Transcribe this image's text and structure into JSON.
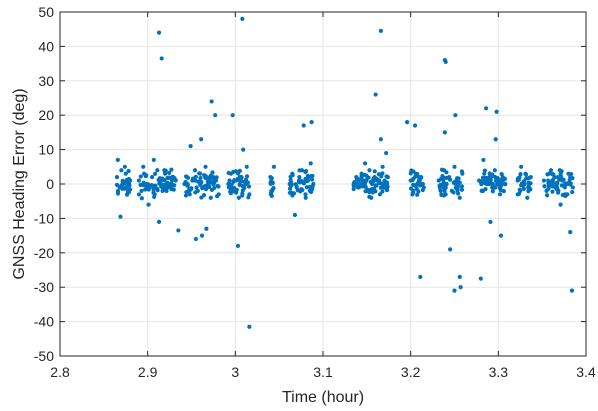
{
  "chart_data": {
    "type": "scatter",
    "title": "",
    "xlabel": "Time (hour)",
    "ylabel": "GNSS Heading Error (deg)",
    "xlim": [
      2.8,
      3.4
    ],
    "ylim": [
      -50,
      50
    ],
    "xticks": [
      2.8,
      2.9,
      3.0,
      3.1,
      3.2,
      3.3,
      3.4
    ],
    "xtick_labels": [
      "2.8",
      "2.9",
      "3",
      "3.1",
      "3.2",
      "3.3",
      "3.4"
    ],
    "yticks": [
      -50,
      -40,
      -30,
      -20,
      -10,
      0,
      10,
      20,
      30,
      40,
      50
    ],
    "ytick_labels": [
      "-50",
      "-40",
      "-30",
      "-20",
      "-10",
      "0",
      "10",
      "20",
      "30",
      "40",
      "50"
    ],
    "grid": true,
    "legend": "none",
    "marker_color": "#0072BD",
    "series": [
      {
        "x": [
          2.865,
          2.868,
          2.87,
          2.872,
          2.875,
          2.878,
          2.88,
          2.866,
          2.869,
          2.874,
          2.89,
          2.893,
          2.896,
          2.899,
          2.902,
          2.905,
          2.908,
          2.911,
          2.914,
          2.917,
          2.92,
          2.923,
          2.926,
          2.929,
          2.932,
          2.895,
          2.901,
          2.907,
          2.913,
          2.919,
          2.942,
          2.945,
          2.948,
          2.951,
          2.954,
          2.957,
          2.96,
          2.963,
          2.966,
          2.969,
          2.972,
          2.975,
          2.978,
          2.981,
          2.949,
          2.955,
          2.961,
          2.967,
          2.973,
          2.977,
          2.992,
          2.995,
          2.998,
          3.001,
          3.004,
          3.007,
          3.01,
          3.013,
          3.016,
          2.997,
          3.003,
          3.009,
          3.04,
          3.042,
          3.044,
          3.062,
          3.065,
          3.07,
          3.073,
          3.076,
          3.08,
          3.083,
          3.086,
          3.089,
          3.068,
          3.078,
          3.135,
          3.138,
          3.141,
          3.144,
          3.147,
          3.15,
          3.153,
          3.156,
          3.159,
          3.162,
          3.165,
          3.168,
          3.171,
          3.174,
          3.14,
          3.148,
          3.155,
          3.16,
          3.166,
          3.172,
          3.2,
          3.203,
          3.206,
          3.209,
          3.212,
          3.215,
          3.205,
          3.211,
          3.232,
          3.235,
          3.238,
          3.241,
          3.244,
          3.247,
          3.25,
          3.253,
          3.256,
          3.259,
          3.239,
          3.245,
          3.251,
          3.257,
          3.278,
          3.281,
          3.284,
          3.287,
          3.29,
          3.293,
          3.296,
          3.299,
          3.302,
          3.305,
          3.308,
          3.283,
          3.291,
          3.297,
          3.303,
          3.322,
          3.325,
          3.328,
          3.331,
          3.334,
          3.337,
          3.326,
          3.333,
          3.352,
          3.355,
          3.358,
          3.361,
          3.364,
          3.367,
          3.37,
          3.373,
          3.376,
          3.379,
          3.382,
          3.385,
          3.36,
          3.371,
          3.38
        ],
        "y": [
          2,
          -1,
          4,
          0,
          3,
          -2,
          1,
          7,
          -9.5,
          5,
          1,
          -2,
          3,
          0,
          -1,
          2,
          -3,
          4,
          1,
          -2,
          3,
          0,
          -1,
          2,
          1,
          5,
          -6,
          7,
          -11,
          4,
          0,
          2,
          -3,
          1,
          4,
          -2,
          3,
          -1,
          5,
          0,
          -4,
          2,
          1,
          -3,
          11,
          -16,
          13,
          -13,
          24,
          20,
          0,
          3,
          -2,
          1,
          -4,
          2,
          -1,
          5,
          -3,
          20,
          -18,
          10,
          2,
          -2,
          5,
          0,
          3,
          -1,
          2,
          4,
          -3,
          1,
          6,
          0,
          -9,
          17,
          0,
          2,
          -1,
          3,
          1,
          -2,
          4,
          0,
          2,
          1,
          -3,
          5,
          0,
          2,
          -1,
          6,
          -4,
          26,
          13,
          9,
          1,
          -2,
          3,
          0,
          2,
          -1,
          17,
          -27,
          1,
          -3,
          4,
          0,
          2,
          -2,
          5,
          1,
          -4,
          3,
          15,
          -19,
          20,
          -30,
          1,
          -2,
          3,
          0,
          2,
          -1,
          4,
          1,
          -3,
          2,
          0,
          7,
          -11,
          13,
          -15,
          1,
          -2,
          0,
          3,
          -1,
          2,
          5,
          -4,
          1,
          -2,
          3,
          0,
          2,
          -1,
          4,
          1,
          -3,
          0,
          2,
          -1,
          4,
          -6,
          3
        ],
        "outliers_x": [
          2.913,
          2.916,
          3.008,
          3.016,
          3.166,
          3.239,
          3.24,
          3.25,
          3.256,
          3.28,
          3.286,
          3.384,
          3.382,
          2.935,
          2.962,
          3.196,
          3.298,
          3.087
        ],
        "outliers_y": [
          44,
          36.5,
          48,
          -41.5,
          44.5,
          36,
          35.5,
          -31,
          -27,
          -27.5,
          22,
          -31,
          -14,
          -13.5,
          -15,
          18,
          21,
          18
        ]
      }
    ]
  }
}
